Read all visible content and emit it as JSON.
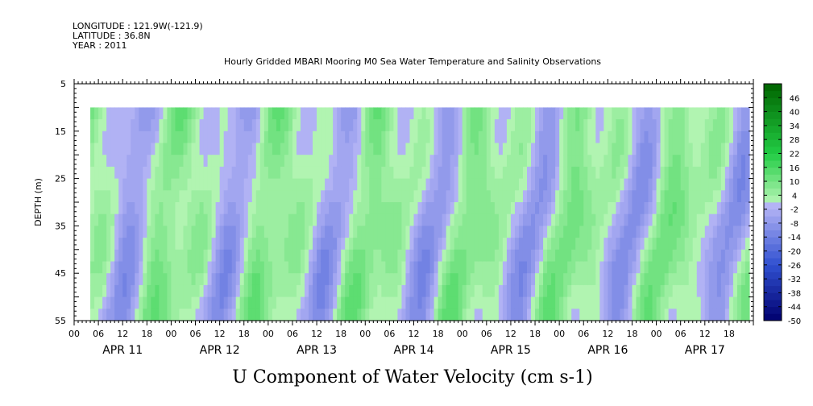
{
  "header": {
    "longitude": "LONGITUDE : 121.9W(-121.9)",
    "latitude": "LATITUDE : 36.8N",
    "year": "YEAR : 2011"
  },
  "chart_data": {
    "type": "heatmap",
    "title": "Hourly Gridded MBARI Mooring M0 Sea Water Temperature and Salinity Observations",
    "xlabel": "U Component of Water Velocity (cm s-1)",
    "ylabel": "DEPTH (m)",
    "y_ticks": [
      5,
      15,
      25,
      35,
      45,
      55
    ],
    "y_range": [
      5,
      55
    ],
    "y_inverted": true,
    "data_depth_range": [
      10,
      55
    ],
    "x_hour_ticks": [
      "00",
      "06",
      "12",
      "18",
      "00",
      "06",
      "12",
      "18",
      "00",
      "06",
      "12",
      "18",
      "00",
      "06",
      "12",
      "18",
      "00",
      "06",
      "12",
      "18",
      "00",
      "06",
      "12",
      "18",
      "00",
      "06",
      "12",
      "18"
    ],
    "x_dates": [
      "APR 11",
      "APR 12",
      "APR 13",
      "APR 14",
      "APR 15",
      "APR 16",
      "APR 17"
    ],
    "x_range_hours": [
      0,
      168
    ],
    "data_hour_range": [
      4,
      167
    ],
    "colorbar": {
      "labels": [
        46,
        40,
        34,
        28,
        22,
        16,
        10,
        4,
        -2,
        -8,
        -14,
        -20,
        -26,
        -32,
        -38,
        -44,
        -50
      ],
      "min": -50,
      "max": 52,
      "step": 3
    },
    "colors": {
      "positive_strong": "#006400",
      "positive_mid": "#22cc44",
      "positive_weak": "#b4f5b4",
      "negative_weak": "#b4b4f5",
      "negative_mid": "#3050d0",
      "negative_strong": "#00006e"
    }
  }
}
